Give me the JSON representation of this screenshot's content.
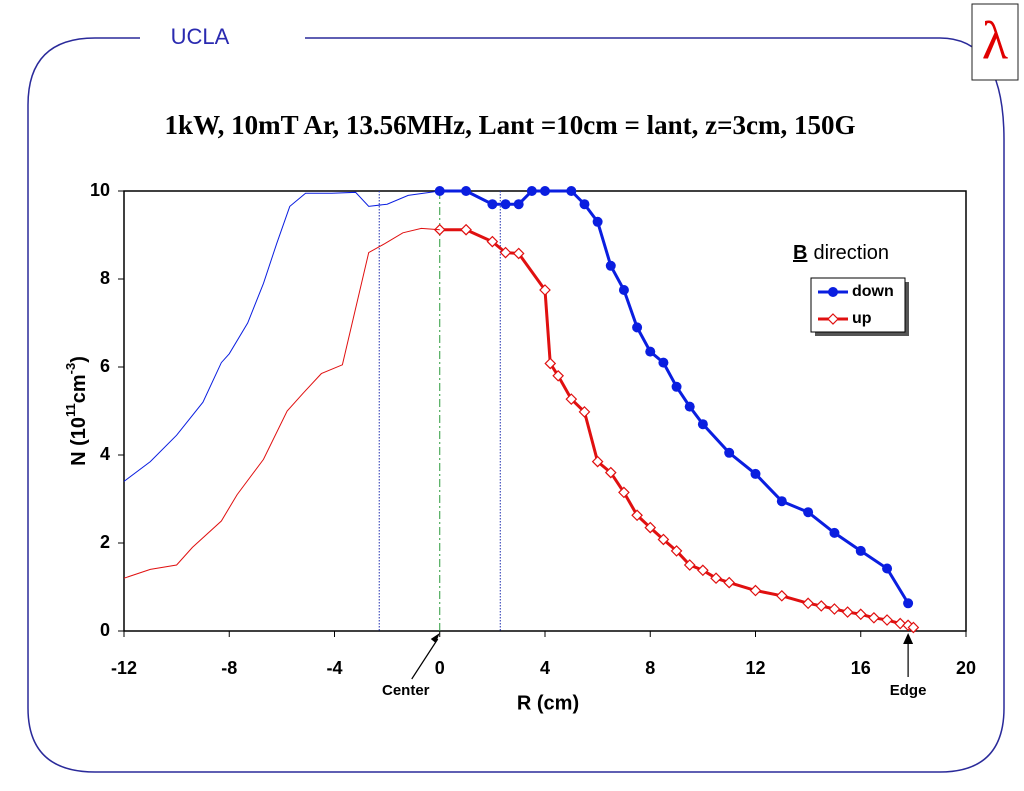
{
  "header": {
    "org": "UCLA",
    "logo": "λ"
  },
  "chart_data": {
    "type": "line",
    "title": "1kW, 10mT Ar, 13.56MHz, Lant =10cm = lant, z=3cm, 150G",
    "xlabel": "R (cm)",
    "ylabel_parts": [
      "N (10",
      "11",
      "cm",
      "-3",
      ")"
    ],
    "legend_title": [
      "B",
      "direction"
    ],
    "xlim": [
      -12,
      20
    ],
    "xticks": [
      -12,
      -8,
      -4,
      0,
      4,
      8,
      12,
      16,
      20
    ],
    "ylim": [
      0,
      10
    ],
    "yticks": [
      0,
      2,
      4,
      6,
      8,
      10
    ],
    "reference_lines": [
      {
        "x": -2.3,
        "color": "#1f2fb0",
        "style": "dotted"
      },
      {
        "x": 0,
        "color": "#2a9a3a",
        "style": "dashdot"
      },
      {
        "x": 2.3,
        "color": "#1f2fb0",
        "style": "dotted"
      }
    ],
    "annotations": [
      {
        "text": "Center",
        "x": 0
      },
      {
        "text": "Edge",
        "x": 17.8
      }
    ],
    "series": [
      {
        "name": "down",
        "color": "#0a1ee0",
        "marker": "circle",
        "x": [
          0,
          1,
          2,
          2.5,
          3,
          3.5,
          4,
          5,
          5.5,
          6,
          6.5,
          7,
          7.5,
          8,
          8.5,
          9,
          9.5,
          10,
          11,
          12,
          13,
          14,
          15,
          16,
          17,
          17.8
        ],
        "values": [
          10,
          10,
          9.7,
          9.7,
          9.7,
          10,
          10,
          10,
          9.7,
          9.3,
          8.3,
          7.75,
          6.9,
          6.35,
          6.1,
          5.55,
          5.1,
          4.7,
          4.05,
          3.57,
          2.95,
          2.7,
          2.23,
          1.82,
          1.42,
          0.63
        ]
      },
      {
        "name": "up",
        "color": "#e01010",
        "marker": "diamond",
        "x": [
          0,
          1,
          2,
          2.5,
          3,
          4,
          4.2,
          4.5,
          5,
          5.5,
          6,
          6.5,
          7,
          7.5,
          8,
          8.5,
          9,
          9.5,
          10,
          10.5,
          11,
          12,
          13,
          14,
          14.5,
          15,
          15.5,
          16,
          16.5,
          17,
          17.5,
          17.8,
          18
        ],
        "values": [
          9.12,
          9.12,
          8.85,
          8.6,
          8.58,
          7.75,
          6.08,
          5.8,
          5.27,
          4.98,
          3.85,
          3.6,
          3.15,
          2.63,
          2.35,
          2.08,
          1.82,
          1.5,
          1.38,
          1.2,
          1.1,
          0.92,
          0.8,
          0.63,
          0.57,
          0.5,
          0.43,
          0.38,
          0.3,
          0.25,
          0.17,
          0.13,
          0.08
        ]
      },
      {
        "color": "#0a1ee0",
        "marker": "none",
        "x": [
          -12,
          -11,
          -10,
          -9,
          -8.3,
          -8,
          -7.3,
          -6.7,
          -6.2,
          -5.7,
          -5.1,
          -4.1,
          -3.2,
          -2.7,
          -2,
          -1.2,
          0
        ],
        "values": [
          3.4,
          3.85,
          4.45,
          5.2,
          6.1,
          6.3,
          7,
          7.9,
          8.8,
          9.65,
          9.95,
          9.95,
          9.97,
          9.65,
          9.7,
          9.9,
          10
        ]
      },
      {
        "color": "#e01010",
        "marker": "none",
        "x": [
          -12,
          -11,
          -10,
          -9.4,
          -8.3,
          -7.7,
          -6.7,
          -5.8,
          -5.2,
          -4.5,
          -3.7,
          -2.7,
          -2.1,
          -1.4,
          -0.7,
          0
        ],
        "values": [
          1.2,
          1.4,
          1.5,
          1.9,
          2.5,
          3.1,
          3.9,
          5.0,
          5.4,
          5.85,
          6.05,
          8.6,
          8.8,
          9.05,
          9.15,
          9.12
        ]
      }
    ]
  }
}
